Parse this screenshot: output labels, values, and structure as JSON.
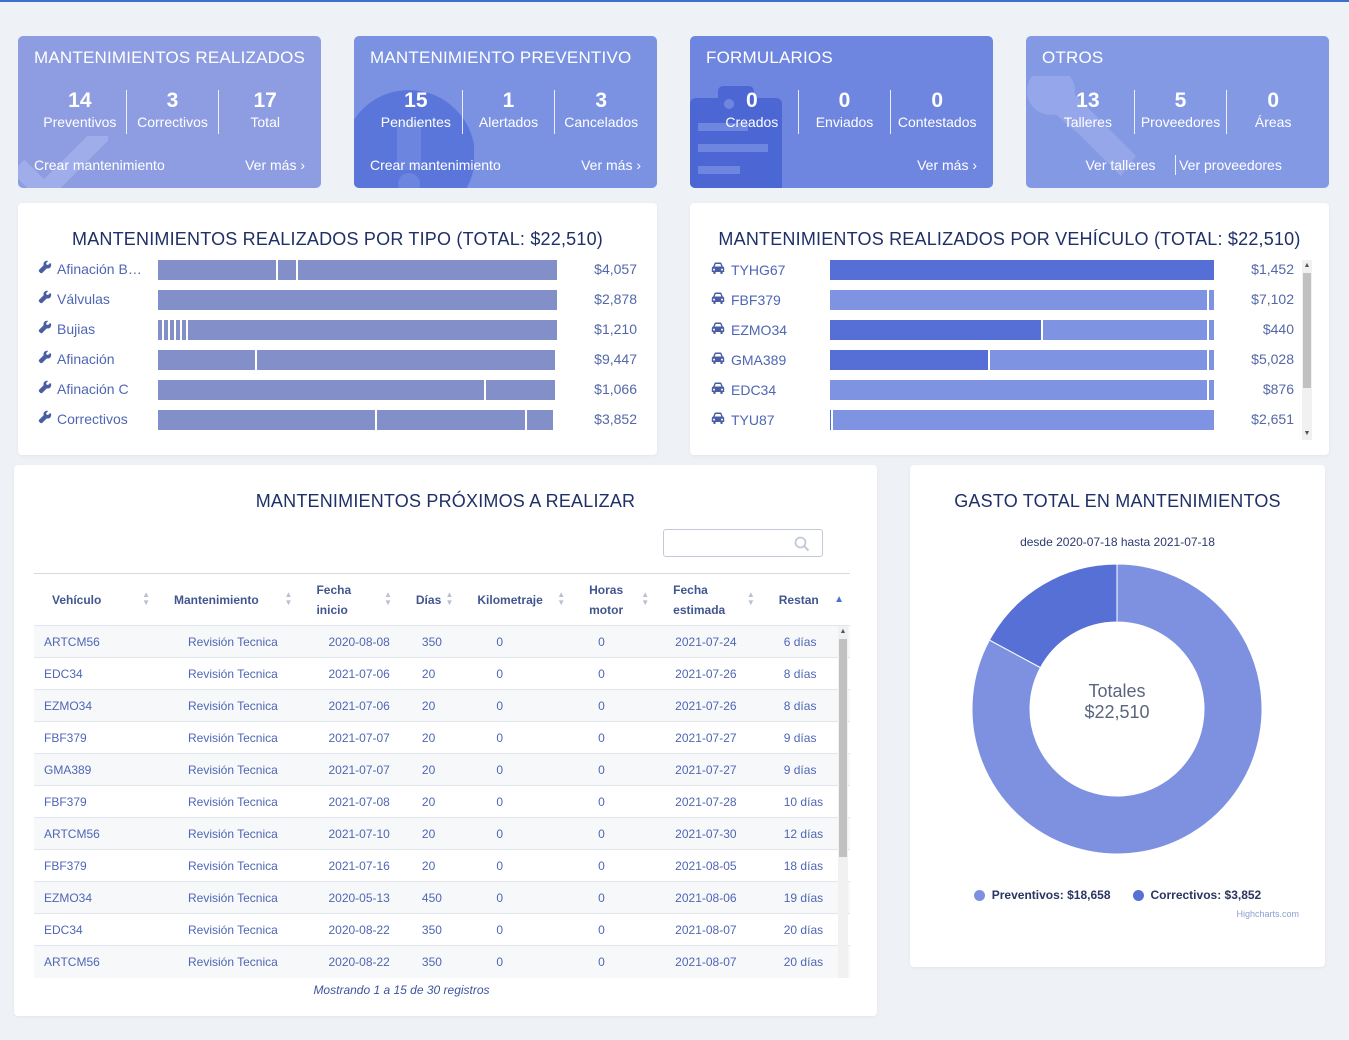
{
  "cards": [
    {
      "title": "MANTENIMIENTOS REALIZADOS",
      "color": "#8e9de1",
      "watermark": "check-icon",
      "stats": [
        {
          "num": "14",
          "label": "Preventivos"
        },
        {
          "num": "3",
          "label": "Correctivos"
        },
        {
          "num": "17",
          "label": "Total"
        }
      ],
      "links": [
        "Crear mantenimiento",
        "Ver más  ›"
      ]
    },
    {
      "title": "MANTENIMIENTO PREVENTIVO",
      "color": "#7b92e3",
      "watermark": "alert-icon",
      "stats": [
        {
          "num": "15",
          "label": "Pendientes"
        },
        {
          "num": "1",
          "label": "Alertados"
        },
        {
          "num": "3",
          "label": "Cancelados"
        }
      ],
      "links": [
        "Crear mantenimiento",
        "Ver más  ›"
      ]
    },
    {
      "title": "FORMULARIOS",
      "color": "#6f86e0",
      "watermark": "form-icon",
      "stats": [
        {
          "num": "0",
          "label": "Creados"
        },
        {
          "num": "0",
          "label": "Enviados"
        },
        {
          "num": "0",
          "label": "Contestados"
        }
      ],
      "links": [
        "Ver más  ›"
      ]
    },
    {
      "title": "OTROS",
      "color": "#8499e4",
      "watermark": "wrench-icon",
      "stats": [
        {
          "num": "13",
          "label": "Talleres"
        },
        {
          "num": "5",
          "label": "Proveedores"
        },
        {
          "num": "0",
          "label": "Áreas"
        }
      ],
      "links": [
        "Ver talleres",
        "Ver proveedores"
      ]
    }
  ],
  "tipo_panel": {
    "title": "MANTENIMIENTOS REALIZADOS POR TIPO (TOTAL: $22,510)",
    "icon": "wrench-icon",
    "bar_color": "#828fc8",
    "rows": [
      {
        "label": "Afinación Básica",
        "value": "$4,057",
        "segments": [
          0.3,
          0.05,
          0.65
        ]
      },
      {
        "label": "Válvulas",
        "value": "$2,878",
        "segments": [
          1.0
        ]
      },
      {
        "label": "Bujias",
        "value": "$1,210",
        "segments": [
          0.015,
          0.015,
          0.015,
          0.015,
          0.015,
          0.925
        ]
      },
      {
        "label": "Afinación",
        "value": "$9,447",
        "segments": [
          0.25,
          0.75
        ]
      },
      {
        "label": "Afinación C",
        "value": "$1,066",
        "segments": [
          0.827,
          0.173
        ]
      },
      {
        "label": "Correctivos",
        "value": "$3,852",
        "segments": [
          0.555,
          0.38,
          0.065
        ]
      }
    ]
  },
  "vehiculo_panel": {
    "title": "MANTENIMIENTOS REALIZADOS POR VEHÍCULO (TOTAL: $22,510)",
    "icon": "car-icon",
    "dark_color": "#566fd7",
    "light_color": "#7e93e2",
    "rows": [
      {
        "label": "TYHG67",
        "value": "$1,452",
        "dark": 1.0
      },
      {
        "label": "FBF379",
        "value": "$7,102",
        "dark": 0.0
      },
      {
        "label": "EZMO34",
        "value": "$440",
        "dark": 0.555
      },
      {
        "label": "GMA389",
        "value": "$5,028",
        "dark": 0.417
      },
      {
        "label": "EDC34",
        "value": "$876",
        "dark": 0.0
      },
      {
        "label": "TYU87",
        "value": "$2,651",
        "dark": 0.008
      }
    ]
  },
  "proximos": {
    "title": "MANTENIMIENTOS PRÓXIMOS A REALIZAR",
    "search_placeholder": "",
    "columns": [
      "Vehículo",
      "Mantenimiento",
      "Fecha inicio",
      "Días",
      "Kilometraje",
      "Horas motor",
      "Fecha estimada",
      "Restan"
    ],
    "rows": [
      [
        "ARTCM56",
        "Revisión Tecnica",
        "2020-08-08",
        "350",
        "0",
        "0",
        "2021-07-24",
        "6 días"
      ],
      [
        "EDC34",
        "Revisión Tecnica",
        "2021-07-06",
        "20",
        "0",
        "0",
        "2021-07-26",
        "8 días"
      ],
      [
        "EZMO34",
        "Revisión Tecnica",
        "2021-07-06",
        "20",
        "0",
        "0",
        "2021-07-26",
        "8 días"
      ],
      [
        "FBF379",
        "Revisión Tecnica",
        "2021-07-07",
        "20",
        "0",
        "0",
        "2021-07-27",
        "9 días"
      ],
      [
        "GMA389",
        "Revisión Tecnica",
        "2021-07-07",
        "20",
        "0",
        "0",
        "2021-07-27",
        "9 días"
      ],
      [
        "FBF379",
        "Revisión Tecnica",
        "2021-07-08",
        "20",
        "0",
        "0",
        "2021-07-28",
        "10 días"
      ],
      [
        "ARTCM56",
        "Revisión Tecnica",
        "2021-07-10",
        "20",
        "0",
        "0",
        "2021-07-30",
        "12 días"
      ],
      [
        "FBF379",
        "Revisión Tecnica",
        "2021-07-16",
        "20",
        "0",
        "0",
        "2021-08-05",
        "18 días"
      ],
      [
        "EZMO34",
        "Revisión Tecnica",
        "2020-05-13",
        "450",
        "0",
        "0",
        "2021-08-06",
        "19 días"
      ],
      [
        "EDC34",
        "Revisión Tecnica",
        "2020-08-22",
        "350",
        "0",
        "0",
        "2021-08-07",
        "20 días"
      ],
      [
        "ARTCM56",
        "Revisión Tecnica",
        "2020-08-22",
        "350",
        "0",
        "0",
        "2021-08-07",
        "20 días"
      ]
    ],
    "footer": "Mostrando 1 a 15 de 30 registros"
  },
  "gasto": {
    "title": "GASTO TOTAL EN MANTENIMIENTOS",
    "subtitle": "desde 2020-07-18 hasta 2021-07-18",
    "center_label": "Totales",
    "center_value": "$22,510",
    "credits": "Highcharts.com",
    "chart_data": {
      "type": "pie",
      "title": "GASTO TOTAL EN MANTENIMIENTOS",
      "subtitle": "desde 2020-07-18 hasta 2021-07-18",
      "legend_position": "bottom",
      "slices": [
        {
          "name": "Preventivos",
          "value": 18658,
          "label": "Preventivos: $18,658",
          "color": "#7d91e0"
        },
        {
          "name": "Correctivos",
          "value": 3852,
          "label": "Correctivos: $3,852",
          "color": "#5770d6"
        }
      ]
    }
  }
}
